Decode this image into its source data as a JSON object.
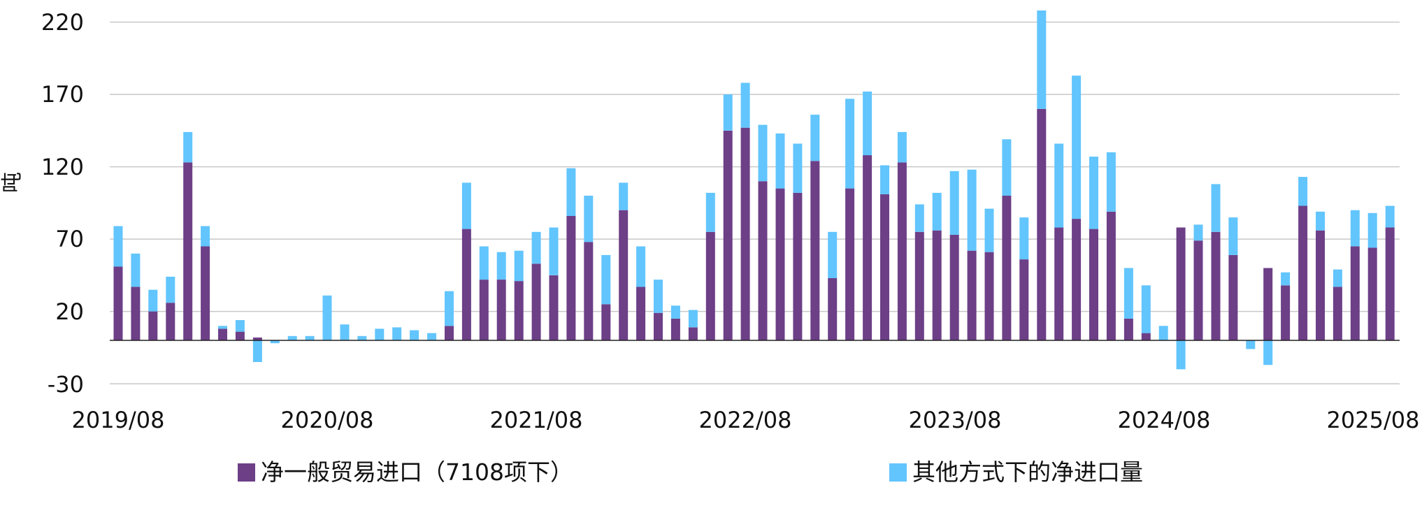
{
  "chart_data": {
    "type": "bar",
    "stacked": true,
    "title": "",
    "xlabel": "",
    "ylabel": "吨",
    "ylim": [
      -30,
      220
    ],
    "yticks": [
      -30,
      20,
      70,
      120,
      170,
      220
    ],
    "grid": true,
    "legend_position": "bottom",
    "x_tick_labels": [
      "2019/08",
      "2020/08",
      "2021/08",
      "2022/08",
      "2023/08",
      "2024/08",
      "2025/08"
    ],
    "x_tick_indices": [
      0,
      12,
      24,
      36,
      48,
      60,
      72
    ],
    "categories": [
      "2019/08",
      "2019/09",
      "2019/10",
      "2019/11",
      "2019/12",
      "2020/01",
      "2020/02",
      "2020/03",
      "2020/04",
      "2020/05",
      "2020/06",
      "2020/07",
      "2020/08",
      "2020/09",
      "2020/10",
      "2020/11",
      "2020/12",
      "2021/01",
      "2021/02",
      "2021/03",
      "2021/04",
      "2021/05",
      "2021/06",
      "2021/07",
      "2021/08",
      "2021/09",
      "2021/10",
      "2021/11",
      "2021/12",
      "2022/01",
      "2022/02",
      "2022/03",
      "2022/04",
      "2022/05",
      "2022/06",
      "2022/07",
      "2022/08",
      "2022/09",
      "2022/10",
      "2022/11",
      "2022/12",
      "2023/01",
      "2023/02",
      "2023/03",
      "2023/04",
      "2023/05",
      "2023/06",
      "2023/07",
      "2023/08",
      "2023/09",
      "2023/10",
      "2023/11",
      "2023/12",
      "2024/01",
      "2024/02",
      "2024/03",
      "2024/04",
      "2024/05",
      "2024/06",
      "2024/07",
      "2024/08",
      "2024/09",
      "2024/10",
      "2024/11",
      "2024/12",
      "2025/01",
      "2025/02",
      "2025/03",
      "2025/04",
      "2025/05",
      "2025/06",
      "2025/07",
      "2025/08",
      "2025/09"
    ],
    "series": [
      {
        "name": "净一般贸易进口（7108项下）",
        "color": "#6d3f87",
        "values": [
          51,
          37,
          20,
          26,
          123,
          65,
          8,
          6,
          2,
          0,
          0,
          0,
          0,
          0,
          0,
          0,
          0,
          0,
          0,
          10,
          77,
          42,
          42,
          41,
          53,
          45,
          86,
          68,
          25,
          90,
          37,
          19,
          15,
          9,
          75,
          145,
          147,
          110,
          105,
          102,
          124,
          43,
          105,
          128,
          101,
          123,
          75,
          76,
          73,
          62,
          61,
          100,
          56,
          160,
          78,
          84,
          77,
          89,
          15,
          5,
          0,
          78,
          69,
          75,
          59,
          0,
          50,
          38,
          93,
          76,
          37,
          65,
          64,
          78
        ]
      },
      {
        "name": "其他方式下的净进口量",
        "color": "#62c5fd",
        "values": [
          28,
          23,
          15,
          18,
          21,
          14,
          2,
          8,
          -15,
          -2,
          3,
          3,
          31,
          11,
          3,
          8,
          9,
          7,
          5,
          24,
          32,
          23,
          19,
          21,
          22,
          33,
          33,
          32,
          34,
          19,
          28,
          23,
          9,
          12,
          27,
          25,
          31,
          39,
          38,
          34,
          32,
          32,
          62,
          44,
          20,
          21,
          19,
          26,
          44,
          56,
          30,
          39,
          29,
          68,
          58,
          99,
          50,
          41,
          35,
          33,
          10,
          -20,
          11,
          33,
          26,
          -6,
          -17,
          9,
          20,
          13,
          12,
          25,
          24,
          15
        ]
      }
    ]
  },
  "axis": {
    "y_label": "吨",
    "y_ticks": [
      "220",
      "170",
      "120",
      "70",
      "20",
      "-30"
    ],
    "x_ticks": [
      "2019/08",
      "2020/08",
      "2021/08",
      "2022/08",
      "2023/08",
      "2024/08",
      "2025/08"
    ]
  },
  "legend": {
    "items": [
      {
        "label": "净一般贸易进口（7108项下）",
        "color": "#6d3f87"
      },
      {
        "label": "其他方式下的净进口量",
        "color": "#62c5fd"
      }
    ]
  },
  "colors": {
    "gridline": "#c8c8c8",
    "zero_line": "#222222"
  }
}
